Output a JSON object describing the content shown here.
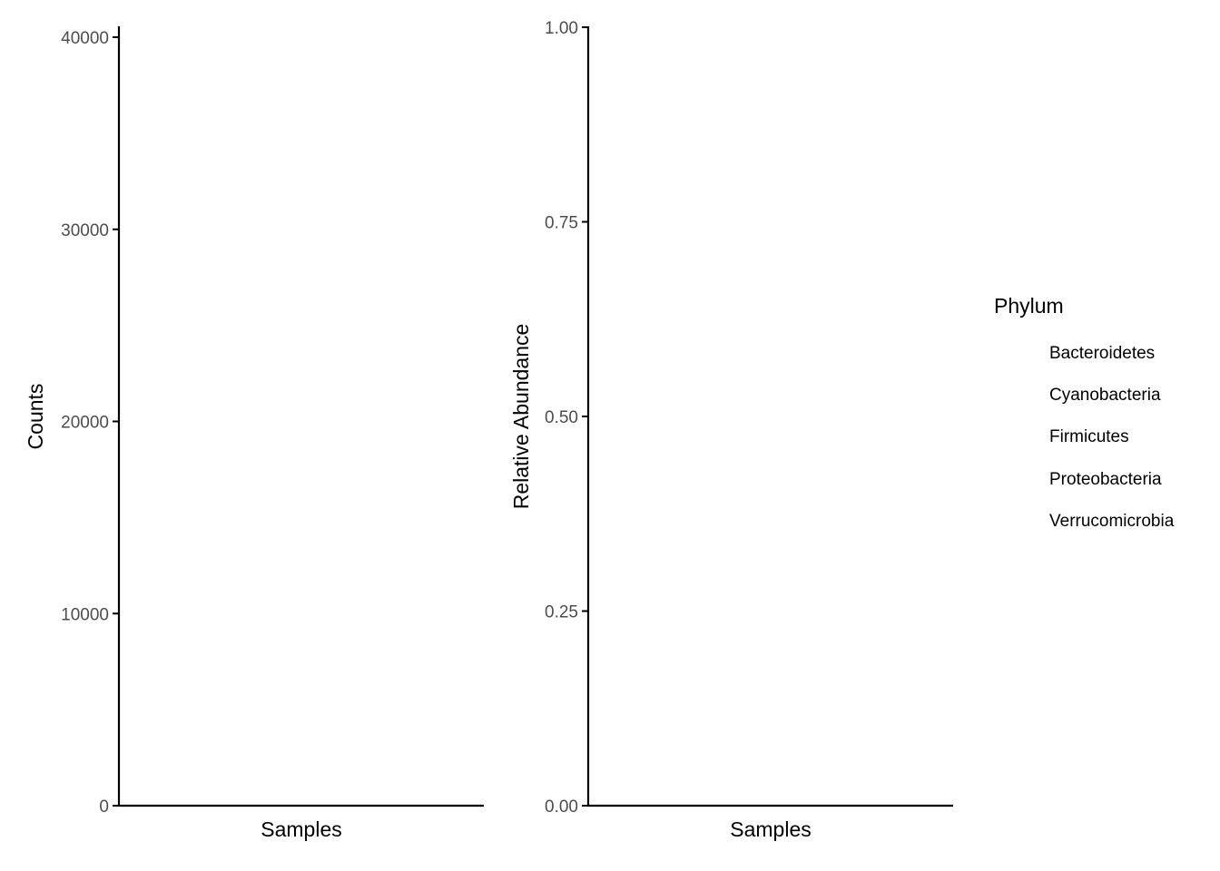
{
  "chart_data": [
    {
      "type": "bar",
      "xlabel": "Samples",
      "ylabel": "Counts",
      "ylim": [
        0,
        40000
      ],
      "yticks": [
        0,
        10000,
        20000,
        30000,
        40000
      ],
      "ytick_labels": [
        "0",
        "10000",
        "20000",
        "30000",
        "40000"
      ],
      "categories": [],
      "series": [],
      "grid": false
    },
    {
      "type": "bar",
      "xlabel": "Samples",
      "ylabel": "Relative Abundance",
      "ylim": [
        0,
        1
      ],
      "yticks": [
        0,
        0.25,
        0.5,
        0.75,
        1
      ],
      "ytick_labels": [
        "0.00",
        "0.25",
        "0.50",
        "0.75",
        "1.00"
      ],
      "categories": [],
      "series": [],
      "grid": false
    }
  ],
  "legend": {
    "title": "Phylum",
    "placement": "right",
    "items": [
      "Bacteroidetes",
      "Cyanobacteria",
      "Firmicutes",
      "Proteobacteria",
      "Verrucomicrobia"
    ]
  }
}
